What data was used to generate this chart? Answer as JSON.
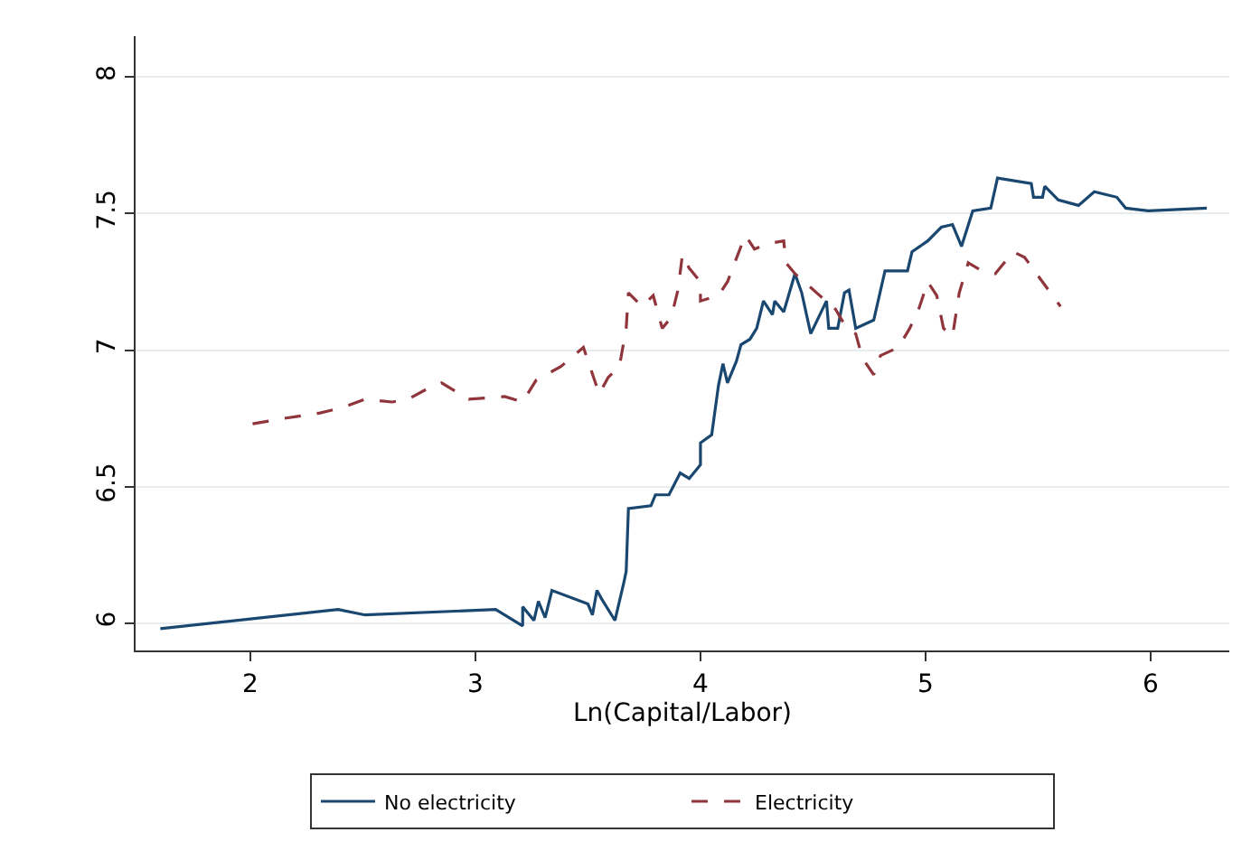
{
  "chart_data": {
    "type": "line",
    "xlabel": "Ln(Capital/Labor)",
    "xlim": [
      1.49,
      6.35
    ],
    "xticks": [
      2,
      3,
      4,
      5,
      6
    ],
    "ylim": [
      5.9,
      8.15
    ],
    "yticks": [
      6,
      6.5,
      7,
      7.5,
      8
    ],
    "grid": "y",
    "legend": "bottom",
    "marker": "none",
    "series": [
      {
        "name": "No electricity",
        "color": "#1a476f",
        "line_style": "solid",
        "x": [
          1.6,
          2.39,
          2.51,
          3.09,
          3.21,
          3.21,
          3.26,
          3.28,
          3.31,
          3.34,
          3.5,
          3.52,
          3.54,
          3.56,
          3.62,
          3.66,
          3.67,
          3.68,
          3.78,
          3.8,
          3.86,
          3.91,
          3.95,
          4.0,
          4.0,
          4.05,
          4.08,
          4.1,
          4.12,
          4.16,
          4.18,
          4.22,
          4.25,
          4.28,
          4.32,
          4.33,
          4.37,
          4.42,
          4.45,
          4.49,
          4.56,
          4.57,
          4.61,
          4.64,
          4.66,
          4.69,
          4.77,
          4.82,
          4.92,
          4.94,
          5.01,
          5.07,
          5.12,
          5.16,
          5.21,
          5.29,
          5.32,
          5.47,
          5.48,
          5.52,
          5.53,
          5.59,
          5.68,
          5.75,
          5.85,
          5.89,
          5.99,
          6.25
        ],
        "values": [
          5.98,
          6.05,
          6.03,
          6.05,
          5.99,
          6.06,
          6.01,
          6.08,
          6.02,
          6.12,
          6.07,
          6.03,
          6.12,
          6.09,
          6.01,
          6.15,
          6.19,
          6.42,
          6.43,
          6.47,
          6.47,
          6.55,
          6.53,
          6.58,
          6.66,
          6.69,
          6.87,
          6.95,
          6.88,
          6.96,
          7.02,
          7.04,
          7.08,
          7.18,
          7.13,
          7.18,
          7.14,
          7.28,
          7.21,
          7.06,
          7.18,
          7.08,
          7.08,
          7.21,
          7.22,
          7.08,
          7.11,
          7.29,
          7.29,
          7.36,
          7.4,
          7.45,
          7.46,
          7.38,
          7.51,
          7.52,
          7.63,
          7.61,
          7.56,
          7.56,
          7.6,
          7.55,
          7.53,
          7.58,
          7.56,
          7.52,
          7.51,
          7.52
        ]
      },
      {
        "name": "Electricity",
        "color": "#90353b",
        "line_style": "dashed",
        "x": [
          2.01,
          2.15,
          2.31,
          2.41,
          2.51,
          2.63,
          2.7,
          2.79,
          2.85,
          2.97,
          3.13,
          3.21,
          3.27,
          3.38,
          3.48,
          3.55,
          3.59,
          3.64,
          3.67,
          3.68,
          3.74,
          3.79,
          3.83,
          3.87,
          3.9,
          3.92,
          3.95,
          4.0,
          4.0,
          4.08,
          4.12,
          4.18,
          4.2,
          4.24,
          4.3,
          4.37,
          4.38,
          4.42,
          4.53,
          4.6,
          4.65,
          4.69,
          4.72,
          4.77,
          4.8,
          4.88,
          4.93,
          4.97,
          5.01,
          5.05,
          5.08,
          5.12,
          5.15,
          5.19,
          5.25,
          5.31,
          5.39,
          5.44,
          5.6
        ],
        "values": [
          6.73,
          6.75,
          6.77,
          6.79,
          6.82,
          6.81,
          6.82,
          6.86,
          6.88,
          6.82,
          6.83,
          6.81,
          6.89,
          6.94,
          7.01,
          6.84,
          6.9,
          6.94,
          7.08,
          7.21,
          7.16,
          7.2,
          7.08,
          7.12,
          7.22,
          7.35,
          7.3,
          7.25,
          7.18,
          7.2,
          7.25,
          7.38,
          7.42,
          7.37,
          7.39,
          7.4,
          7.32,
          7.28,
          7.2,
          7.15,
          7.08,
          7.06,
          6.97,
          6.91,
          6.98,
          7.01,
          7.08,
          7.15,
          7.25,
          7.2,
          7.08,
          7.05,
          7.21,
          7.32,
          7.29,
          7.28,
          7.36,
          7.34,
          7.16
        ]
      }
    ]
  }
}
